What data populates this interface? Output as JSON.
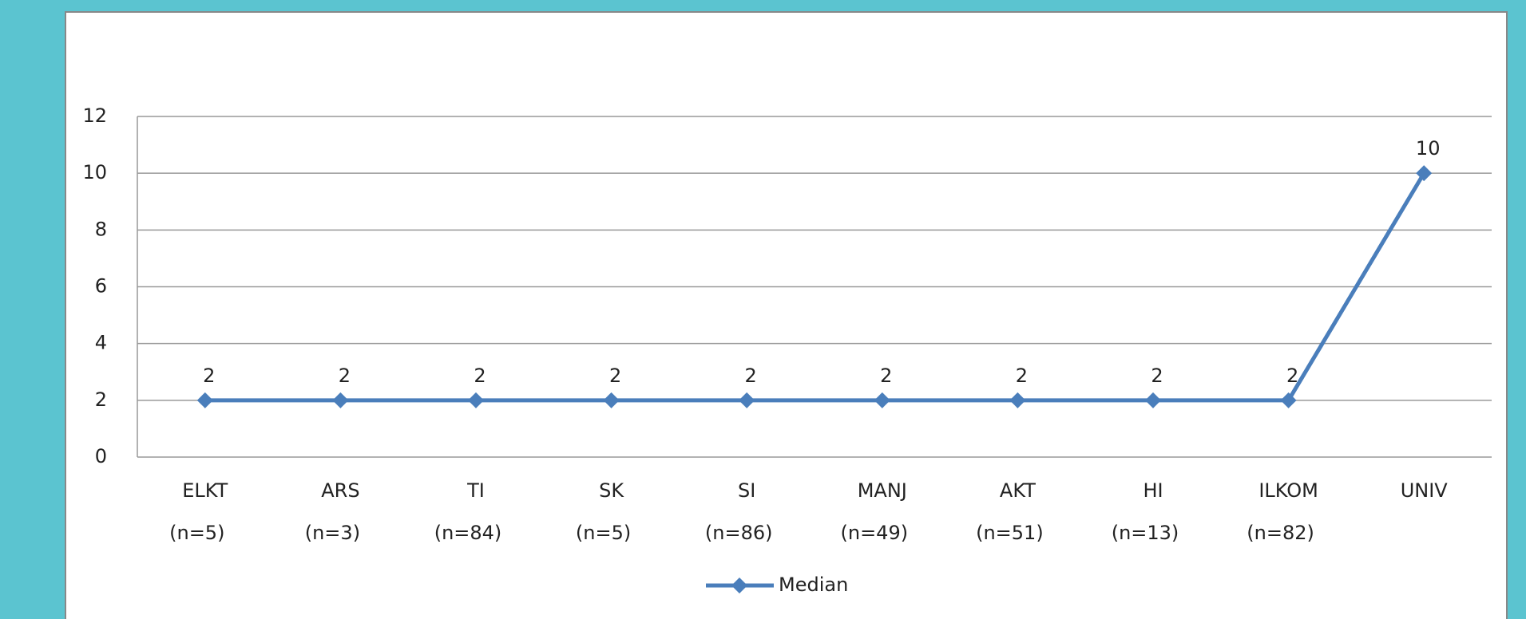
{
  "chart_data": {
    "type": "line",
    "categories": [
      "ELKT",
      "ARS",
      "TI",
      "SK",
      "SI",
      "MANJ",
      "AKT",
      "HI",
      "ILKOM",
      "UNIV"
    ],
    "sublabels": [
      "(n=5)",
      "(n=3)",
      "(n=84)",
      "(n=5)",
      "(n=86)",
      "(n=49)",
      "(n=51)",
      "(n=13)",
      "(n=82)",
      null
    ],
    "series": [
      {
        "name": "Median",
        "color": "#4a7ebb",
        "values": [
          2,
          2,
          2,
          2,
          2,
          2,
          2,
          2,
          2,
          10
        ]
      }
    ],
    "ylim": [
      0,
      12
    ],
    "yticks": [
      0,
      2,
      4,
      6,
      8,
      10,
      12
    ],
    "grid": true,
    "legend": "bottom"
  }
}
